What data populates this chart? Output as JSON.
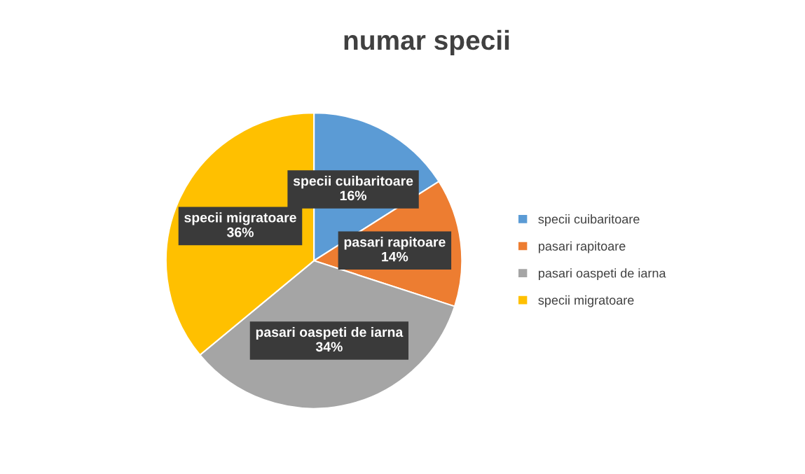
{
  "chart_data": {
    "type": "pie",
    "title": "numar specii",
    "categories": [
      "specii cuibaritoare",
      "pasari rapitoare",
      "pasari oaspeti de iarna",
      "specii migratoare"
    ],
    "values": [
      16,
      14,
      34,
      36
    ],
    "colors": [
      "#5b9bd5",
      "#ed7d31",
      "#a5a5a5",
      "#ffc000"
    ],
    "value_labels": [
      "16%",
      "14%",
      "34%",
      "36%"
    ],
    "legend": "right"
  }
}
